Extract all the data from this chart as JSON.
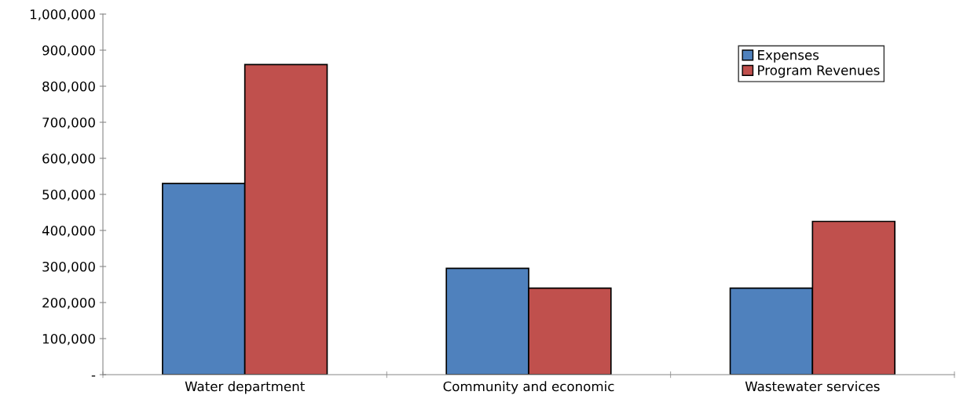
{
  "chart_data": {
    "type": "bar",
    "categories": [
      "Water department",
      "Community and economic",
      "Wastewater services"
    ],
    "series": [
      {
        "name": "Expenses",
        "color": "#4f81bd",
        "values": [
          530000,
          295000,
          240000
        ]
      },
      {
        "name": "Program Revenues",
        "color": "#c0504d",
        "values": [
          860000,
          240000,
          425000
        ]
      }
    ],
    "ylim": [
      0,
      1000000
    ],
    "yticks": [
      {
        "value": 0,
        "label": "-"
      },
      {
        "value": 100000,
        "label": "100,000"
      },
      {
        "value": 200000,
        "label": "200,000"
      },
      {
        "value": 300000,
        "label": "300,000"
      },
      {
        "value": 400000,
        "label": "400,000"
      },
      {
        "value": 500000,
        "label": "500,000"
      },
      {
        "value": 600000,
        "label": "600,000"
      },
      {
        "value": 700000,
        "label": "700,000"
      },
      {
        "value": 800000,
        "label": "800,000"
      },
      {
        "value": 900000,
        "label": "900,000"
      },
      {
        "value": 1000000,
        "label": "1,000,000"
      }
    ],
    "grid": false,
    "legend": "top right"
  }
}
